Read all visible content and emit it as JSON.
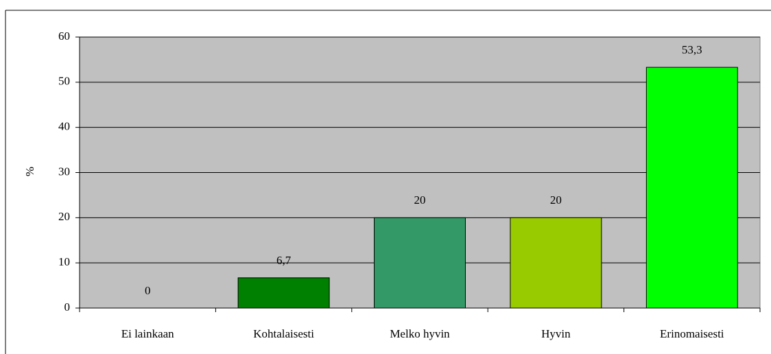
{
  "chart_data": {
    "type": "bar",
    "y_label": "%",
    "categories": [
      "Ei lainkaan",
      "Kohtalaisesti",
      "Melko hyvin",
      "Hyvin",
      "Erinomaisesti"
    ],
    "values": [
      0,
      6.7,
      20,
      20,
      53.3
    ],
    "value_labels": [
      "0",
      "6,7",
      "20",
      "20",
      "53,3"
    ],
    "colors": [
      "#006600",
      "#008000",
      "#339966",
      "#99cc00",
      "#00ff00"
    ],
    "ylim": [
      0,
      60
    ],
    "yticks": [
      0,
      10,
      20,
      30,
      40,
      50,
      60
    ],
    "grid": true,
    "plot_background": "#c0c0c0"
  }
}
